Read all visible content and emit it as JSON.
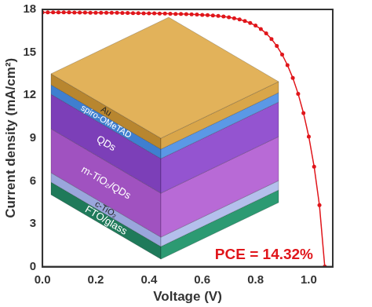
{
  "chart_data": {
    "type": "line",
    "x_label": "Voltage (V)",
    "y_label": "Current density (mA/cm²)",
    "x": [
      0.0,
      0.02,
      0.04,
      0.06,
      0.08,
      0.1,
      0.12,
      0.14,
      0.16,
      0.18,
      0.2,
      0.22,
      0.24,
      0.26,
      0.28,
      0.3,
      0.32,
      0.34,
      0.36,
      0.38,
      0.4,
      0.42,
      0.44,
      0.46,
      0.48,
      0.5,
      0.52,
      0.54,
      0.56,
      0.58,
      0.6,
      0.62,
      0.64,
      0.66,
      0.68,
      0.7,
      0.72,
      0.74,
      0.76,
      0.78,
      0.8,
      0.82,
      0.84,
      0.86,
      0.88,
      0.9,
      0.92,
      0.94,
      0.96,
      0.98,
      1.0,
      1.02,
      1.04,
      1.06
    ],
    "values": [
      17.8,
      17.8,
      17.8,
      17.79,
      17.79,
      17.79,
      17.78,
      17.78,
      17.78,
      17.77,
      17.77,
      17.77,
      17.76,
      17.76,
      17.76,
      17.75,
      17.75,
      17.74,
      17.74,
      17.73,
      17.73,
      17.72,
      17.71,
      17.71,
      17.7,
      17.69,
      17.68,
      17.67,
      17.66,
      17.64,
      17.62,
      17.6,
      17.57,
      17.54,
      17.5,
      17.45,
      17.38,
      17.3,
      17.19,
      17.05,
      16.87,
      16.63,
      16.32,
      15.93,
      15.44,
      14.84,
      14.1,
      13.2,
      12.1,
      10.75,
      9.1,
      7.0,
      4.3,
      0.0
    ],
    "color": "#e0161b",
    "marker": "circle",
    "line_style": "solid",
    "xlim": [
      0,
      1.09
    ],
    "xticks": [
      {
        "value": 0,
        "label": "0.0"
      },
      {
        "value": 0.2,
        "label": "0.2"
      },
      {
        "value": 0.4,
        "label": "0.4"
      },
      {
        "value": 0.6,
        "label": "0.6"
      },
      {
        "value": 0.8,
        "label": "0.8"
      },
      {
        "value": 1,
        "label": "1.0"
      }
    ],
    "ylim": [
      0,
      18
    ],
    "yticks": [
      0,
      3,
      6,
      9,
      12,
      15,
      18
    ],
    "grid": false,
    "annotation": "PCE = 14.32%",
    "inset_layers": [
      "Au",
      "spiro-OMeTAD",
      "QDs",
      "m-TiO₂/QDs",
      "c-TiO₂",
      "FTO/glass"
    ]
  }
}
